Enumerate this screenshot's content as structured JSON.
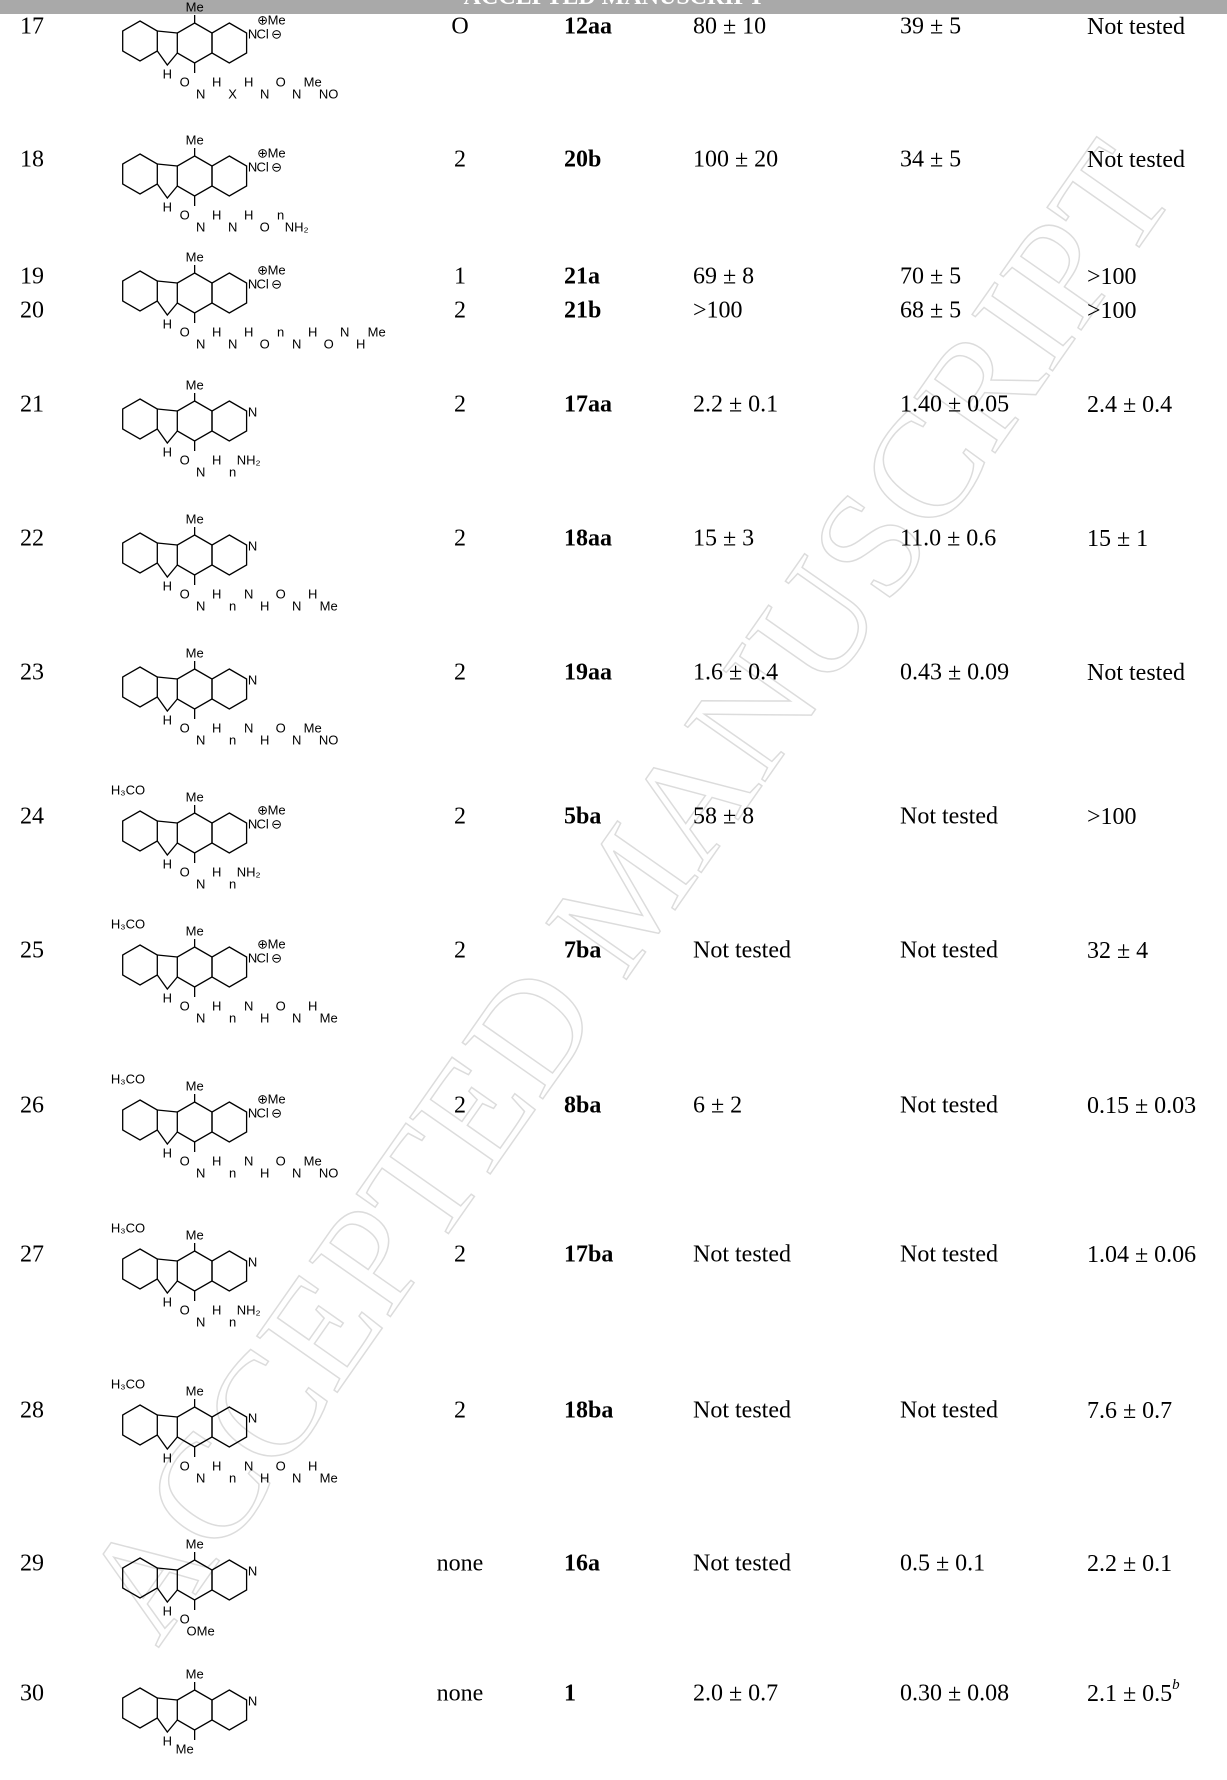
{
  "header": {
    "title": "ACCEPTED MANUSCRIPT"
  },
  "watermark": "ACCEPTED MANUSCRIPT",
  "rows": [
    {
      "entry": "17",
      "n": "O",
      "compound": "12aa",
      "v1": "80 ± 10",
      "v2": "39 ± 5",
      "v3": "Not tested",
      "structure": {
        "top": "Me",
        "ring": "N",
        "extra": [
          "⊕",
          "Me",
          "Cl",
          "⊖"
        ],
        "nh": "H",
        "chain": [
          "O",
          "N",
          "H",
          "X",
          "H",
          "N",
          "O",
          "N",
          "Me",
          "NO"
        ]
      }
    },
    {
      "entry": "18",
      "n": "2",
      "compound": "20b",
      "v1": "100 ± 20",
      "v2": "34 ± 5",
      "v3": "Not tested",
      "structure": {
        "top": "Me",
        "ring": "N",
        "extra": [
          "⊕",
          "Me",
          "Cl",
          "⊖"
        ],
        "nh": "H",
        "chain": [
          "O",
          "N",
          "H",
          "N",
          "H",
          "O",
          "n",
          "NH₂"
        ]
      }
    },
    {
      "entry": "19",
      "n": "1",
      "compound": "21a",
      "v1": "69 ± 8",
      "v2": "70 ± 5",
      "v3": ">100",
      "structure": {
        "top": "Me",
        "ring": "N",
        "extra": [
          "⊕",
          "Me",
          "Cl",
          "⊖"
        ],
        "nh": "H",
        "chain": [
          "O",
          "N",
          "H",
          "N",
          "H",
          "O",
          "n",
          "N",
          "H",
          "O",
          "N",
          "H",
          "Me"
        ]
      }
    },
    {
      "entry": "20",
      "n": "2",
      "compound": "21b",
      "v1": ">100",
      "v2": "68 ± 5",
      "v3": ">100"
    },
    {
      "entry": "21",
      "n": "2",
      "compound": "17aa",
      "v1": "2.2 ± 0.1",
      "v2": "1.40 ± 0.05",
      "v3": "2.4 ± 0.4",
      "structure": {
        "top": "Me",
        "ring": "N",
        "nh": "H",
        "chain": [
          "O",
          "N",
          "H",
          "n",
          "NH₂"
        ]
      }
    },
    {
      "entry": "22",
      "n": "2",
      "compound": "18aa",
      "v1": "15 ± 3",
      "v2": "11.0 ± 0.6",
      "v3": "15 ± 1",
      "structure": {
        "top": "Me",
        "ring": "N",
        "nh": "H",
        "chain": [
          "O",
          "N",
          "H",
          "n",
          "N",
          "H",
          "O",
          "N",
          "H",
          "Me"
        ]
      }
    },
    {
      "entry": "23",
      "n": "2",
      "compound": "19aa",
      "v1": "1.6 ± 0.4",
      "v2": "0.43 ± 0.09",
      "v3": "Not tested",
      "structure": {
        "top": "Me",
        "ring": "N",
        "nh": "H",
        "chain": [
          "O",
          "N",
          "H",
          "n",
          "N",
          "H",
          "O",
          "N",
          "Me",
          "NO"
        ]
      }
    },
    {
      "entry": "24",
      "n": "2",
      "compound": "5ba",
      "v1": "58 ± 8",
      "v2": "Not tested",
      "v3": ">100",
      "structure": {
        "methoxy": "H₃CO",
        "top": "Me",
        "ring": "N",
        "extra": [
          "⊕",
          "Me",
          "Cl",
          "⊖"
        ],
        "nh": "H",
        "chain": [
          "O",
          "N",
          "H",
          "n",
          "NH₂"
        ]
      }
    },
    {
      "entry": "25",
      "n": "2",
      "compound": "7ba",
      "v1": "Not tested",
      "v2": "Not tested",
      "v3": "32 ± 4",
      "structure": {
        "methoxy": "H₃CO",
        "top": "Me",
        "ring": "N",
        "extra": [
          "⊕",
          "Me",
          "Cl",
          "⊖"
        ],
        "nh": "H",
        "chain": [
          "O",
          "N",
          "H",
          "n",
          "N",
          "H",
          "O",
          "N",
          "H",
          "Me"
        ]
      }
    },
    {
      "entry": "26",
      "n": "2",
      "compound": "8ba",
      "v1": "6 ± 2",
      "v2": "Not tested",
      "v3": "0.15 ± 0.03",
      "structure": {
        "methoxy": "H₃CO",
        "top": "Me",
        "ring": "N",
        "extra": [
          "⊕",
          "Me",
          "Cl",
          "⊖"
        ],
        "nh": "H",
        "chain": [
          "O",
          "N",
          "H",
          "n",
          "N",
          "H",
          "O",
          "N",
          "Me",
          "NO"
        ]
      }
    },
    {
      "entry": "27",
      "n": "2",
      "compound": "17ba",
      "v1": "Not tested",
      "v2": "Not tested",
      "v3": "1.04 ± 0.06",
      "structure": {
        "methoxy": "H₃CO",
        "top": "Me",
        "ring": "N",
        "nh": "H",
        "chain": [
          "O",
          "N",
          "H",
          "n",
          "NH₂"
        ]
      }
    },
    {
      "entry": "28",
      "n": "2",
      "compound": "18ba",
      "v1": "Not tested",
      "v2": "Not tested",
      "v3": "7.6 ± 0.7",
      "structure": {
        "methoxy": "H₃CO",
        "top": "Me",
        "ring": "N",
        "nh": "H",
        "chain": [
          "O",
          "N",
          "H",
          "n",
          "N",
          "H",
          "O",
          "N",
          "H",
          "Me"
        ]
      }
    },
    {
      "entry": "29",
      "n": "none",
      "compound": "16a",
      "v1": "Not tested",
      "v2": "0.5 ± 0.1",
      "v3": "2.2 ± 0.1",
      "structure": {
        "top": "Me",
        "ring": "N",
        "nh": "H",
        "chain": [
          "O",
          "OMe"
        ]
      }
    },
    {
      "entry": "30",
      "n": "none",
      "compound": "1",
      "v1": "2.0 ± 0.7",
      "v2": "0.30 ± 0.08",
      "v3": "2.1 ± 0.5",
      "note": "b",
      "structure": {
        "top": "Me",
        "ring": "N",
        "nh": "H",
        "chain": [
          "Me"
        ]
      }
    }
  ]
}
